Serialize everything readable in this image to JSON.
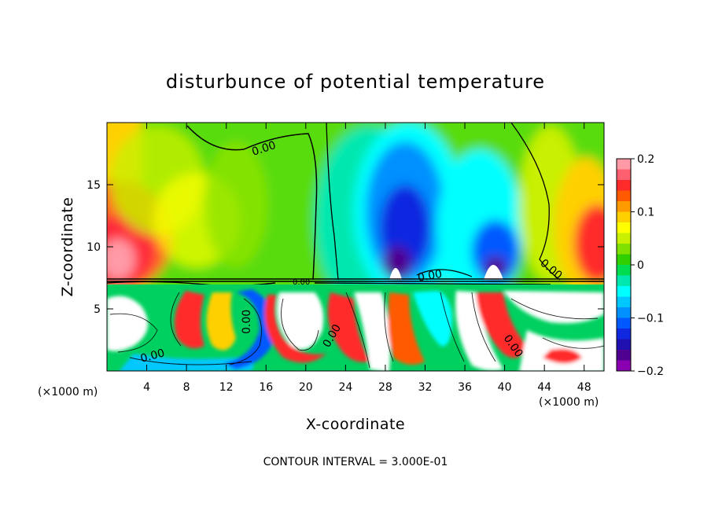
{
  "chart_data": {
    "type": "heatmap",
    "title": "disturbunce of potential temperature",
    "xlabel": "X-coordinate",
    "ylabel": "Z-coordinate",
    "x_unit_note": "(×1000 m)",
    "x_ticks": [
      4,
      8,
      12,
      16,
      20,
      24,
      28,
      32,
      36,
      40,
      44,
      48
    ],
    "y_ticks": [
      5,
      10,
      15
    ],
    "xlim": [
      0,
      50
    ],
    "ylim": [
      0,
      20
    ],
    "colorbar": {
      "ticks": [
        "0.2",
        "0.1",
        "0",
        "−0.1",
        "−0.2"
      ],
      "tick_values": [
        0.2,
        0.1,
        0,
        -0.1,
        -0.2
      ],
      "range": [
        -0.2,
        0.2
      ],
      "colors": [
        "#ff9aa6",
        "#ff6070",
        "#ff2a2a",
        "#ff5a00",
        "#ff9a00",
        "#ffd000",
        "#ffff00",
        "#c8f000",
        "#80e000",
        "#30d000",
        "#00dc50",
        "#00e8b0",
        "#00ffff",
        "#00c8ff",
        "#0090ff",
        "#0058ff",
        "#1028e0",
        "#2010b0",
        "#500090",
        "#8a00b0"
      ]
    },
    "contour_labels": [
      "0.00",
      "0.00",
      "0.00",
      "0.00",
      "0.00",
      "0.00",
      "0.00",
      "0.00"
    ],
    "footer": "CONTOUR INTERVAL = 3.000E-01",
    "grid": false,
    "legend": "right (colorbar)"
  }
}
